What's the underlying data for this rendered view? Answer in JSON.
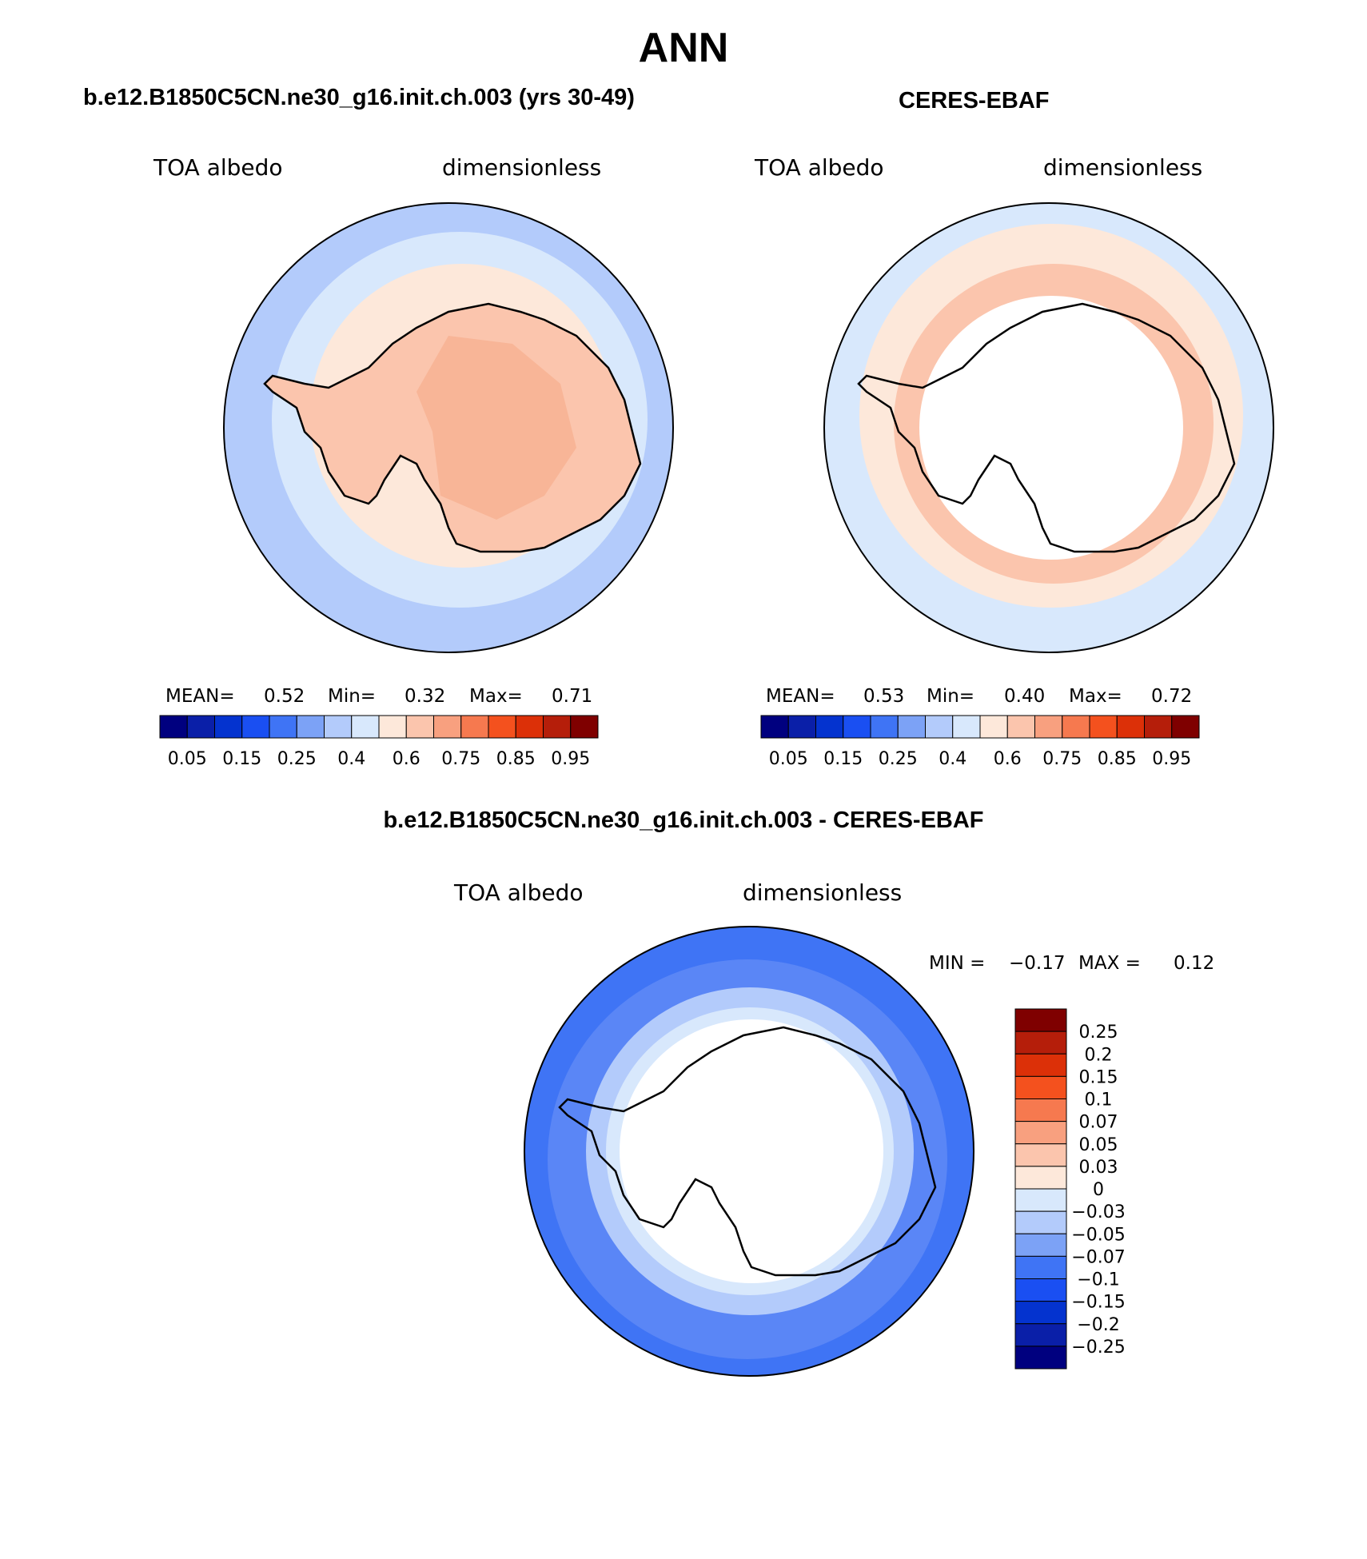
{
  "main_title": "ANN",
  "panels": {
    "model": {
      "title": "b.e12.B1850C5CN.ne30_g16.init.ch.003 (yrs 30-49)",
      "left_label": "TOA albedo",
      "right_label": "dimensionless",
      "stats": {
        "mean_label": "MEAN=",
        "mean": "0.52",
        "min_label": "Min=",
        "min": "0.32",
        "max_label": "Max=",
        "max": "0.71"
      }
    },
    "obs": {
      "title": "CERES-EBAF",
      "left_label": "TOA albedo",
      "right_label": "dimensionless",
      "stats": {
        "mean_label": "MEAN=",
        "mean": "0.53",
        "min_label": "Min=",
        "min": "0.40",
        "max_label": "Max=",
        "max": "0.72"
      }
    },
    "diff": {
      "title": "b.e12.B1850C5CN.ne30_g16.init.ch.003 - CERES-EBAF",
      "left_label": "TOA albedo",
      "right_label": "dimensionless",
      "stats": {
        "min_label": "MIN =",
        "min": "−0.17",
        "max_label": "MAX =",
        "max": "0.12"
      }
    }
  },
  "abs_colorbar": {
    "colors": [
      "#00007f",
      "#0a1fa8",
      "#0433cf",
      "#1a4ff2",
      "#3f74f5",
      "#7ca2f6",
      "#b3cbfb",
      "#d8e8fc",
      "#fde8da",
      "#fbc5ad",
      "#f8a07f",
      "#f6794f",
      "#f4511e",
      "#dc3008",
      "#b51e0a",
      "#7f0000"
    ],
    "tick_labels": [
      "0.05",
      "0.15",
      "0.25",
      "0.4",
      "0.6",
      "0.75",
      "0.85",
      "0.95"
    ]
  },
  "diff_colorbar": {
    "colors": [
      "#00007f",
      "#0a1fa8",
      "#0433cf",
      "#1a4ff2",
      "#3f74f5",
      "#7ca2f6",
      "#b3cbfb",
      "#d8e8fc",
      "#fde8da",
      "#fbc5ad",
      "#f8a07f",
      "#f6794f",
      "#f4511e",
      "#dc3008",
      "#b51e0a",
      "#7f0000"
    ],
    "tick_labels": [
      "0.25",
      "0.2",
      "0.15",
      "0.1",
      "0.07",
      "0.05",
      "0.03",
      "0",
      "−0.03",
      "−0.05",
      "−0.07",
      "−0.1",
      "−0.15",
      "−0.2",
      "−0.25"
    ]
  }
}
